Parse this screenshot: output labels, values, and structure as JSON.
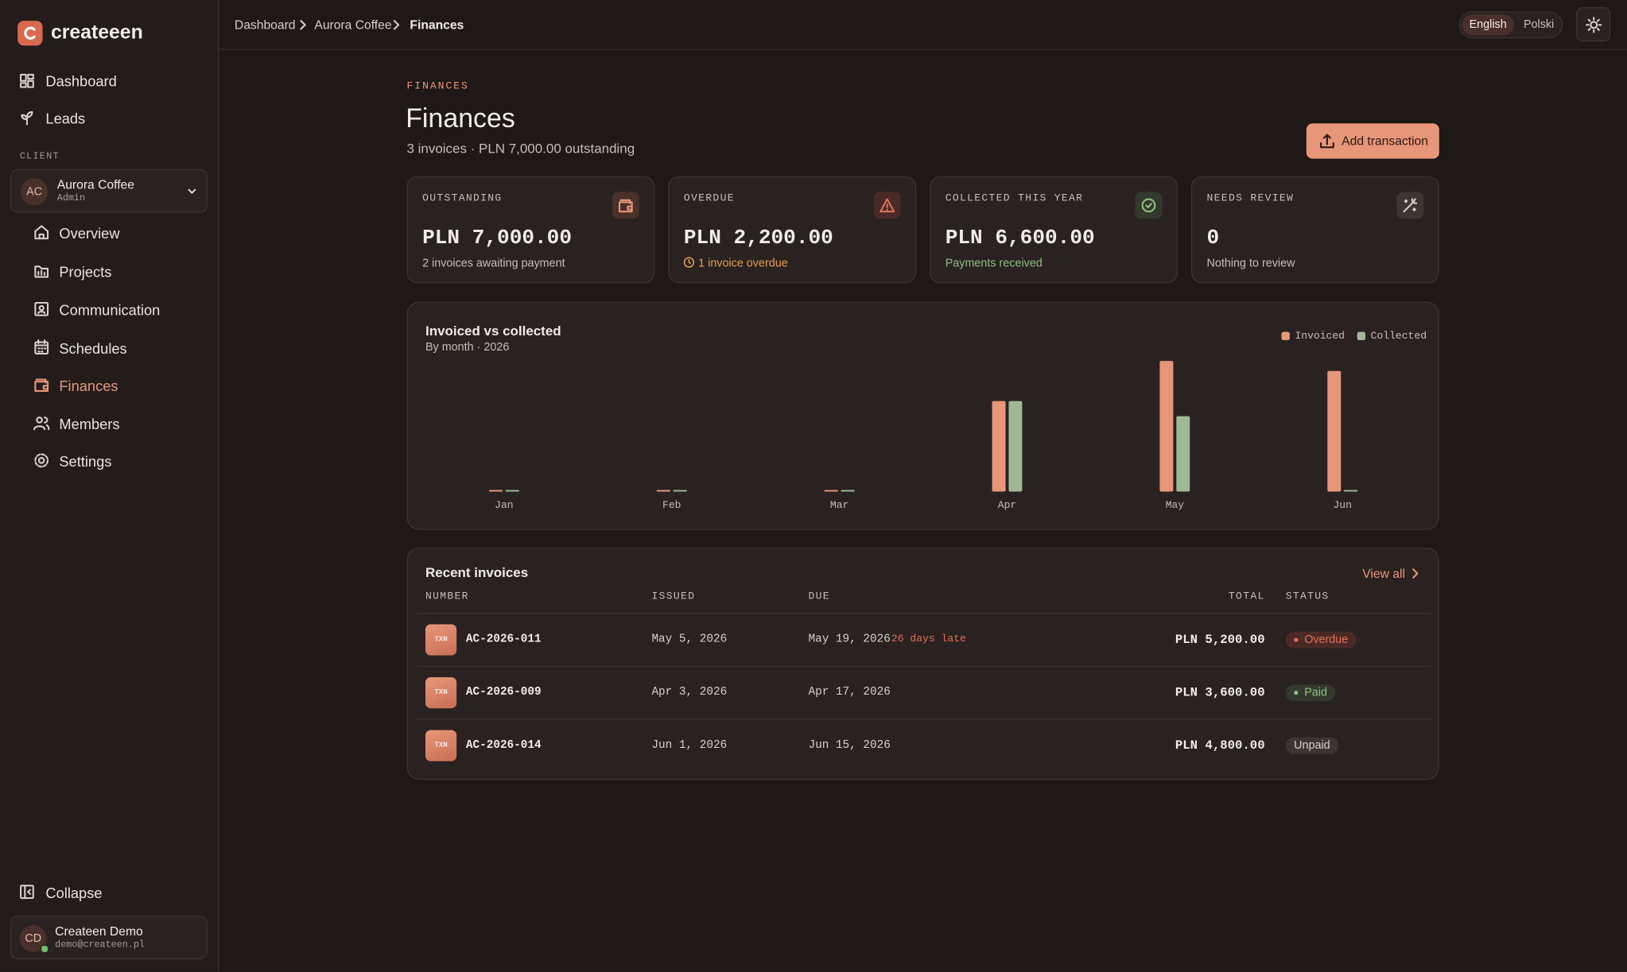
{
  "sidebar": {
    "brand": "createeen",
    "nav": [
      "Dashboard",
      "Leads"
    ],
    "client_label": "CLIENT",
    "client": {
      "initials": "AC",
      "name": "Aurora Coffee",
      "role": "Admin"
    },
    "client_nav": [
      "Overview",
      "Projects",
      "Communication",
      "Schedules",
      "Finances",
      "Members",
      "Settings"
    ],
    "collapse": "Collapse",
    "user": {
      "initials": "CD",
      "name": "Createen Demo",
      "email": "demo@createen.pl"
    }
  },
  "topbar": {
    "breadcrumbs": [
      "Dashboard",
      "Aurora Coffee",
      "Finances"
    ],
    "languages": [
      "English",
      "Polski"
    ]
  },
  "header": {
    "eyebrow": "FINANCES",
    "title": "Finances",
    "subtitle": "3 invoices · PLN 7,000.00 outstanding",
    "action": "Add transaction"
  },
  "stats": [
    {
      "label": "OUTSTANDING",
      "value": "PLN 7,000.00",
      "note": "2 invoices awaiting payment"
    },
    {
      "label": "OVERDUE",
      "value": "PLN 2,200.00",
      "note": "1 invoice overdue"
    },
    {
      "label": "COLLECTED THIS YEAR",
      "value": "PLN 6,600.00",
      "note": "Payments received"
    },
    {
      "label": "NEEDS REVIEW",
      "value": "0",
      "note": "Nothing to review"
    }
  ],
  "chart_data": {
    "type": "bar",
    "title": "Invoiced vs collected",
    "subtitle": "By month · 2026",
    "categories": [
      "Jan",
      "Feb",
      "Mar",
      "Apr",
      "May",
      "Jun"
    ],
    "series": [
      {
        "name": "Invoiced",
        "color": "#e8967a",
        "values": [
          0,
          0,
          0,
          3600,
          5200,
          4800
        ]
      },
      {
        "name": "Collected",
        "color": "#9fb896",
        "values": [
          0,
          0,
          0,
          3600,
          3000,
          0
        ]
      }
    ]
  },
  "invoices": {
    "title": "Recent invoices",
    "view_all": "View all",
    "columns": [
      "NUMBER",
      "ISSUED",
      "DUE",
      "TOTAL",
      "STATUS"
    ],
    "rows": [
      {
        "icon": "TXN",
        "number": "AC-2026-011",
        "issued": "May 5, 2026",
        "due": "May 19, 2026",
        "late": "26 days late",
        "total": "PLN 5,200.00",
        "status": "Overdue"
      },
      {
        "icon": "TXN",
        "number": "AC-2026-009",
        "issued": "Apr 3, 2026",
        "due": "Apr 17, 2026",
        "total": "PLN 3,600.00",
        "status": "Paid"
      },
      {
        "icon": "TXN",
        "number": "AC-2026-014",
        "issued": "Jun 1, 2026",
        "due": "Jun 15, 2026",
        "total": "PLN 4,800.00",
        "status": "Unpaid"
      }
    ]
  }
}
